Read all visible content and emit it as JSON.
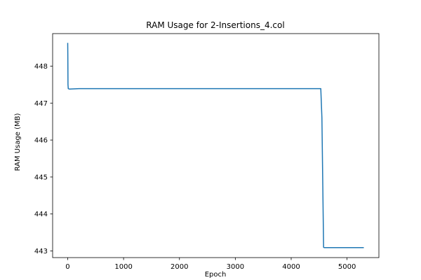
{
  "chart_data": {
    "type": "line",
    "title": "RAM Usage for 2-Insertions_4.col",
    "xlabel": "Epoch",
    "ylabel": "RAM Usage (MB)",
    "xlim": [
      -270,
      5570
    ],
    "ylim": [
      442.82,
      448.88
    ],
    "xticks": [
      0,
      1000,
      2000,
      3000,
      4000,
      5000
    ],
    "yticks": [
      443,
      444,
      445,
      446,
      447,
      448
    ],
    "grid": false,
    "legend": "none",
    "series": [
      {
        "color": "#1f77b4",
        "x": [
          0,
          2,
          5,
          10,
          30,
          200,
          4530,
          4550,
          4580,
          4590,
          5300
        ],
        "y": [
          448.63,
          448.3,
          447.5,
          447.39,
          447.38,
          447.39,
          447.39,
          446.6,
          443.1,
          443.09,
          443.09
        ]
      }
    ]
  }
}
